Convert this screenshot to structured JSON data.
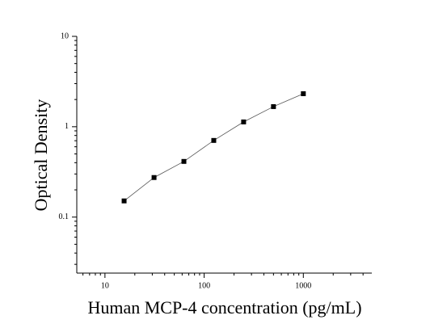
{
  "chart_data": {
    "type": "scatter",
    "x_label": "Human MCP-4 concentration (pg/mL)",
    "y_label": "Optical Density",
    "xscale": "log",
    "yscale": "log",
    "xlim": [
      5.2,
      4900
    ],
    "ylim": [
      0.024,
      10
    ],
    "xticks": [
      10,
      100,
      1000
    ],
    "yticks": [
      0.1,
      1,
      10
    ],
    "connect": true,
    "series": [
      {
        "color": "#000000",
        "x": [
          15.6,
          31.25,
          62.5,
          125,
          250,
          500,
          1000
        ],
        "values": [
          0.151,
          0.274,
          0.413,
          0.705,
          1.13,
          1.67,
          2.32
        ]
      }
    ]
  }
}
